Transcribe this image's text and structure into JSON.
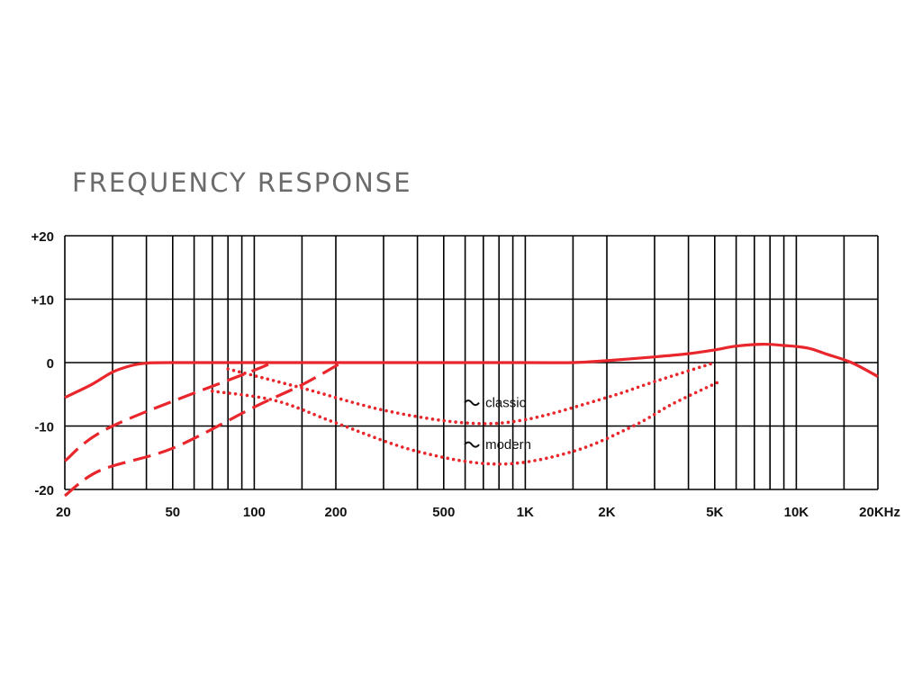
{
  "colors": {
    "curve": "#e8262b",
    "grid": "#000000",
    "title": "#6b6b6b",
    "text": "#111111"
  },
  "chart_data": {
    "type": "line",
    "title": "FREQUENCY RESPONSE",
    "x_scale": "log",
    "xlim": [
      20,
      20000
    ],
    "ylim": [
      -20,
      20
    ],
    "grid": true,
    "x_ticks": [
      {
        "value": 20,
        "label": "20"
      },
      {
        "value": 50,
        "label": "50"
      },
      {
        "value": 100,
        "label": "100"
      },
      {
        "value": 200,
        "label": "200"
      },
      {
        "value": 500,
        "label": "500"
      },
      {
        "value": 1000,
        "label": "1K"
      },
      {
        "value": 2000,
        "label": "2K"
      },
      {
        "value": 5000,
        "label": "5K"
      },
      {
        "value": 10000,
        "label": "10K"
      },
      {
        "value": 20000,
        "label": "20KHz"
      }
    ],
    "x_gridlines": [
      20,
      30,
      40,
      50,
      60,
      70,
      80,
      90,
      100,
      150,
      200,
      300,
      400,
      500,
      600,
      700,
      800,
      900,
      1000,
      1500,
      2000,
      3000,
      4000,
      5000,
      6000,
      7000,
      8000,
      9000,
      10000,
      15000,
      20000
    ],
    "y_ticks": [
      {
        "value": 20,
        "label": "+20"
      },
      {
        "value": 10,
        "label": "+10"
      },
      {
        "value": 0,
        "label": "0"
      },
      {
        "value": -10,
        "label": "-10"
      },
      {
        "value": -20,
        "label": "-20"
      }
    ],
    "series": [
      {
        "style": "solid",
        "points": [
          [
            20,
            -5.5
          ],
          [
            25,
            -3.5
          ],
          [
            30,
            -1.5
          ],
          [
            35,
            -0.5
          ],
          [
            40,
            -0.1
          ],
          [
            50,
            0
          ],
          [
            200,
            0
          ],
          [
            1000,
            0
          ],
          [
            1500,
            0
          ],
          [
            2000,
            0.3
          ],
          [
            3000,
            0.9
          ],
          [
            4000,
            1.4
          ],
          [
            5000,
            2
          ],
          [
            6000,
            2.6
          ],
          [
            7500,
            2.9
          ],
          [
            9000,
            2.7
          ],
          [
            11000,
            2.3
          ],
          [
            13000,
            1.3
          ],
          [
            16000,
            0
          ],
          [
            20000,
            -2.2
          ]
        ]
      },
      {
        "style": "dashed",
        "points": [
          [
            20,
            -15.5
          ],
          [
            30,
            -10
          ],
          [
            100,
            -1.2
          ],
          [
            115,
            0
          ]
        ]
      },
      {
        "style": "dashed",
        "points": [
          [
            20,
            -21
          ],
          [
            27,
            -17
          ],
          [
            50,
            -13.5
          ],
          [
            100,
            -7
          ],
          [
            150,
            -3.5
          ],
          [
            210,
            0
          ]
        ]
      },
      {
        "style": "dotted",
        "name": "classic",
        "points": [
          [
            80,
            -1
          ],
          [
            150,
            -4
          ],
          [
            300,
            -7.5
          ],
          [
            600,
            -9.5
          ],
          [
            1000,
            -9
          ],
          [
            2000,
            -5.5
          ],
          [
            3000,
            -3
          ],
          [
            5000,
            0
          ]
        ]
      },
      {
        "style": "dotted",
        "name": "modern",
        "points": [
          [
            70,
            -4.5
          ],
          [
            120,
            -6
          ],
          [
            200,
            -9.5
          ],
          [
            400,
            -14
          ],
          [
            800,
            -16
          ],
          [
            1500,
            -14
          ],
          [
            2500,
            -10
          ],
          [
            3500,
            -6.5
          ],
          [
            5200,
            -3
          ]
        ]
      }
    ],
    "annotations": [
      {
        "text": "classic",
        "x": 650,
        "y": -6.9
      },
      {
        "text": "modern",
        "x": 650,
        "y": -13.5
      }
    ]
  }
}
